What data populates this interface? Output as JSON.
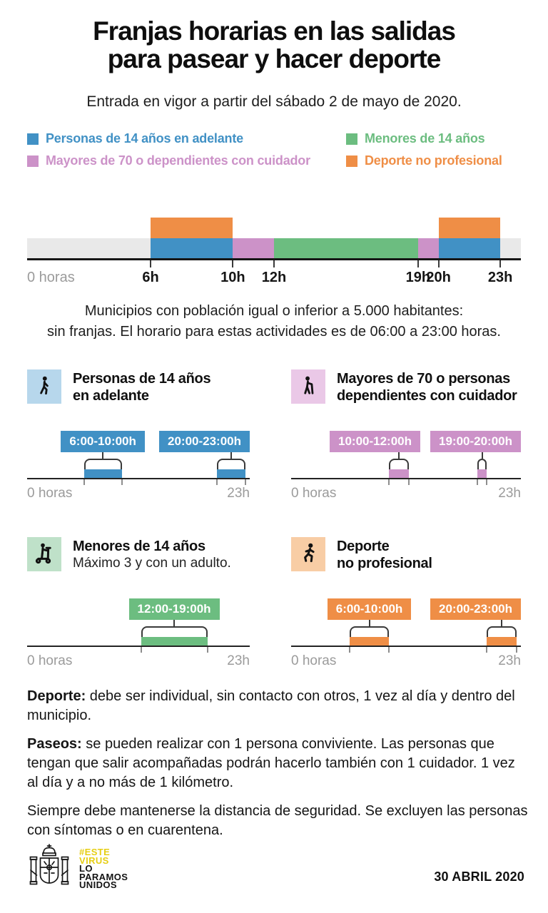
{
  "header": {
    "title": "Franjas horarias en las salidas\npara pasear y hacer deporte",
    "subtitle": "Entrada en vigor a partir del sábado 2 de mayo de 2020."
  },
  "legend": {
    "rows": [
      [
        {
          "label": "Personas de 14 años en adelante",
          "color": "#4191C5"
        },
        {
          "label": "Menores de 14 años",
          "color": "#6CBD80"
        }
      ],
      [
        {
          "label": "Mayores de 70 o dependientes con cuidador",
          "color": "#CC92C8"
        },
        {
          "label": "Deporte no profesional",
          "color": "#EF8E46"
        }
      ]
    ]
  },
  "main_note": "Municipios con población igual o inferior a 5.000 habitantes:\nsin franjas. El horario para estas actividades es de 06:00 a 23:00 horas.",
  "chart_data": [
    {
      "type": "bar",
      "name": "franja-horaria-general",
      "x_range_hours": [
        0,
        24
      ],
      "origin_label": "0 horas",
      "track_color": "#E9E9E9",
      "ticks": [
        {
          "hour": 6,
          "label": "6h"
        },
        {
          "hour": 10,
          "label": "10h"
        },
        {
          "hour": 12,
          "label": "12h"
        },
        {
          "hour": 19,
          "label": "19h"
        },
        {
          "hour": 20,
          "label": "20h"
        },
        {
          "hour": 23,
          "label": "23h"
        }
      ],
      "series": [
        {
          "name": "Deporte no profesional",
          "color": "#EF8E46",
          "layer": "above",
          "segments": [
            [
              6,
              10
            ],
            [
              20,
              23
            ]
          ]
        },
        {
          "name": "Personas de 14 años en adelante",
          "color": "#4191C5",
          "layer": "band",
          "segments": [
            [
              6,
              10
            ],
            [
              20,
              23
            ]
          ]
        },
        {
          "name": "Mayores de 70 o dependientes con cuidador",
          "color": "#CC92C8",
          "layer": "band",
          "segments": [
            [
              10,
              12
            ],
            [
              19,
              20
            ]
          ]
        },
        {
          "name": "Menores de 14 años",
          "color": "#6CBD80",
          "layer": "band",
          "segments": [
            [
              12,
              19
            ]
          ]
        }
      ]
    },
    {
      "type": "bar",
      "name": "personas-14-adelante",
      "title": "Personas de 14 años\nen adelante",
      "subtitle": "",
      "icon": "walking-person",
      "color": "#4191C5",
      "icon_bg": "#B7D7EC",
      "x_range_hours": [
        0,
        23
      ],
      "axis_left_label": "0 horas",
      "axis_right_label": "23h",
      "segments": [
        {
          "label": "6:00-10:00h",
          "start": 6,
          "end": 10
        },
        {
          "label": "20:00-23:00h",
          "start": 20,
          "end": 23
        }
      ]
    },
    {
      "type": "bar",
      "name": "mayores-70-dependientes",
      "title": "Mayores de 70 o personas\ndependientes con cuidador",
      "subtitle": "",
      "icon": "elderly-person-with-cane",
      "color": "#CC92C8",
      "icon_bg": "#EAC8E7",
      "x_range_hours": [
        0,
        23
      ],
      "axis_left_label": "0 horas",
      "axis_right_label": "23h",
      "segments": [
        {
          "label": "10:00-12:00h",
          "start": 10,
          "end": 12
        },
        {
          "label": "19:00-20:00h",
          "start": 19,
          "end": 20
        }
      ]
    },
    {
      "type": "bar",
      "name": "menores-14",
      "title": "Menores de 14 años",
      "subtitle": "Máximo 3 y con un adulto.",
      "icon": "child-on-scooter",
      "color": "#6CBD80",
      "icon_bg": "#BFE1C9",
      "x_range_hours": [
        0,
        23
      ],
      "axis_left_label": "0 horas",
      "axis_right_label": "23h",
      "segments": [
        {
          "label": "12:00-19:00h",
          "start": 12,
          "end": 19
        }
      ]
    },
    {
      "type": "bar",
      "name": "deporte-no-profesional",
      "title": "Deporte\nno profesional",
      "subtitle": "",
      "icon": "running-person",
      "color": "#EF8E46",
      "icon_bg": "#F8CDA5",
      "x_range_hours": [
        0,
        23
      ],
      "axis_left_label": "0 horas",
      "axis_right_label": "23h",
      "segments": [
        {
          "label": "6:00-10:00h",
          "start": 6,
          "end": 10
        },
        {
          "label": "20:00-23:00h",
          "start": 20,
          "end": 23
        }
      ]
    }
  ],
  "notes": [
    {
      "lead": "Deporte:",
      "text": "debe ser individual, sin contacto con otros, 1 vez al día y dentro del municipio."
    },
    {
      "lead": "Paseos:",
      "text": "se pueden realizar con 1 persona conviviente. Las personas que tengan que salir acompañadas podrán hacerlo también con 1 cuidador. 1 vez al día y a no más de 1 kilómetro."
    },
    {
      "lead": "",
      "text": "Siempre debe mantenerse la distancia de seguridad. Se excluyen las personas con síntomas o en cuarentena."
    }
  ],
  "footer": {
    "emblem_icon": "spain-coat-of-arms",
    "campaign_lines": [
      {
        "text": "#ESTE",
        "color": "#E6CE13"
      },
      {
        "text": "VIRUS",
        "color": "#E6CE13"
      },
      {
        "text": "LO",
        "color": "#131313"
      },
      {
        "text": "PARAMOS",
        "color": "#131313"
      },
      {
        "text": "UNIDOS",
        "color": "#131313"
      }
    ],
    "date": "30 ABRIL 2020"
  }
}
